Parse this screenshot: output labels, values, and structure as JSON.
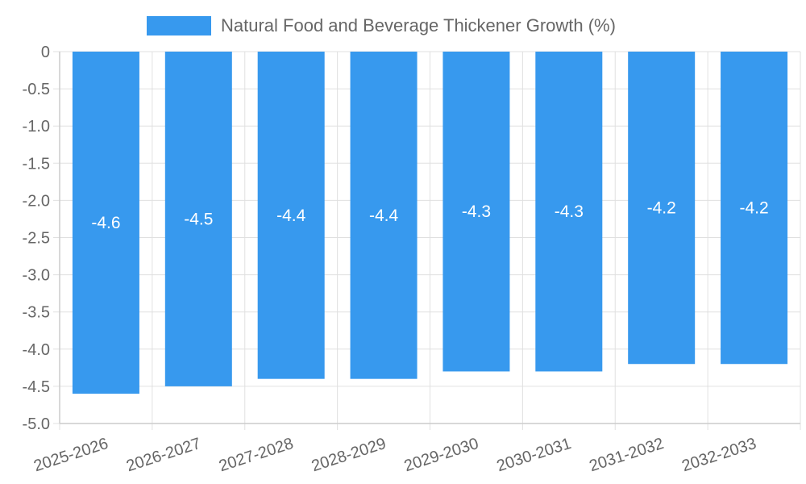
{
  "chart_data": {
    "type": "bar",
    "categories": [
      "2025-2026",
      "2026-2027",
      "2027-2028",
      "2028-2029",
      "2029-2030",
      "2030-2031",
      "2031-2032",
      "2032-2033"
    ],
    "series": [
      {
        "name": "Natural Food and Beverage Thickener Growth (%)",
        "values": [
          -4.6,
          -4.5,
          -4.4,
          -4.4,
          -4.3,
          -4.3,
          -4.2,
          -4.2
        ],
        "color": "#3799ee"
      }
    ],
    "data_labels": [
      "-4.6",
      "-4.5",
      "-4.4",
      "-4.4",
      "-4.3",
      "-4.3",
      "-4.2",
      "-4.2"
    ],
    "y_ticks": [
      "0",
      "-0.5",
      "-1.0",
      "-1.5",
      "-2.0",
      "-2.5",
      "-3.0",
      "-3.5",
      "-4.0",
      "-4.5",
      "-5.0"
    ],
    "ylim": [
      -5.0,
      0
    ],
    "grid": true,
    "legend_position": "top-center",
    "colors": {
      "grid": "#e0e0e0",
      "axis": "#cccccc",
      "text": "#666666",
      "label": "#ffffff"
    }
  }
}
